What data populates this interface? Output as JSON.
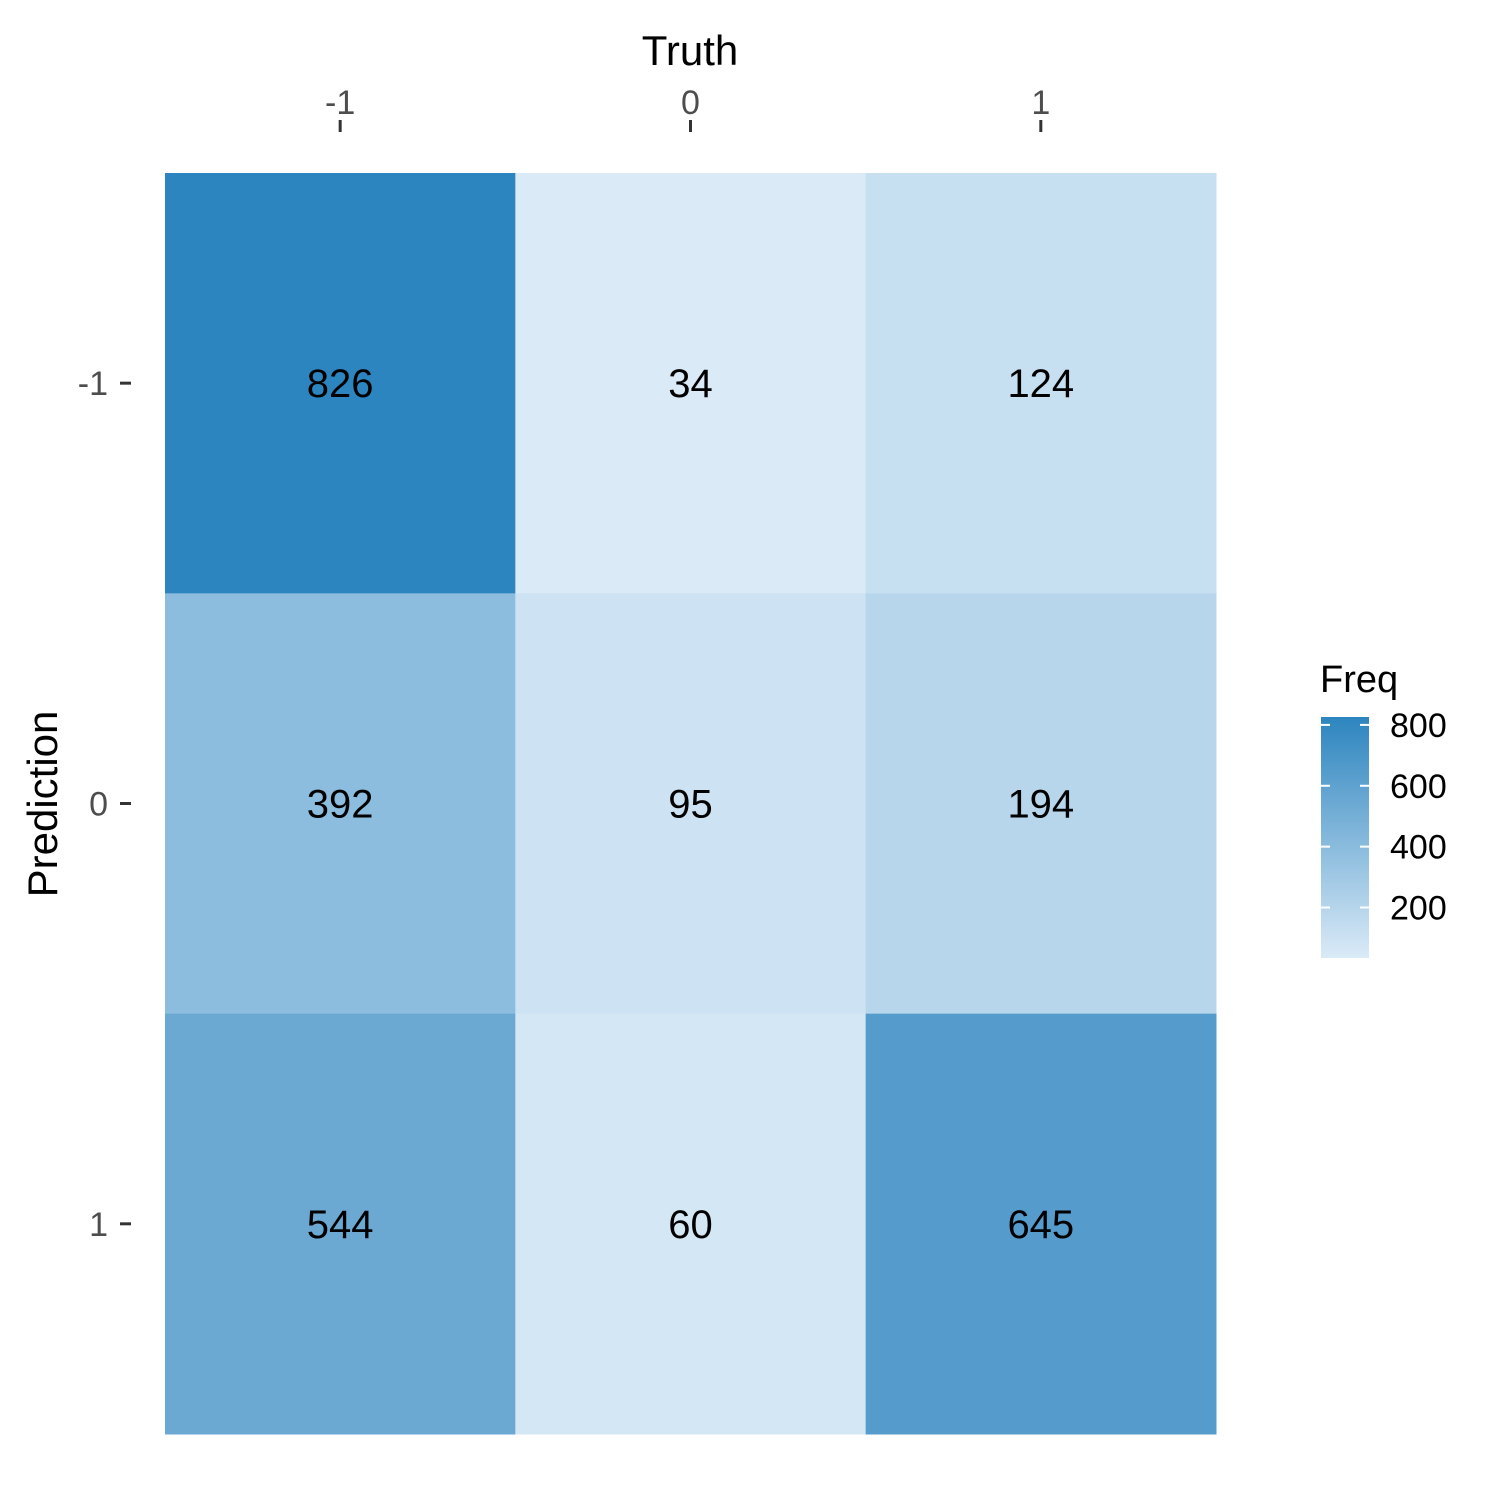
{
  "chart_data": {
    "type": "heatmap",
    "xlabel": "Truth",
    "ylabel": "Prediction",
    "x_categories": [
      "-1",
      "0",
      "1"
    ],
    "y_categories": [
      "-1",
      "0",
      "1"
    ],
    "values": [
      [
        826,
        34,
        124
      ],
      [
        392,
        95,
        194
      ],
      [
        544,
        60,
        645
      ]
    ],
    "legend": {
      "title": "Freq",
      "ticks": [
        "800",
        "600",
        "400",
        "200"
      ],
      "tick_values": [
        800,
        600,
        400,
        200
      ],
      "range": [
        34,
        826
      ],
      "position": "right"
    },
    "colors": {
      "low": "#daeaf7",
      "high": "#2d85bf",
      "text": "#000000",
      "tick_text": "#4d4d4d"
    }
  }
}
